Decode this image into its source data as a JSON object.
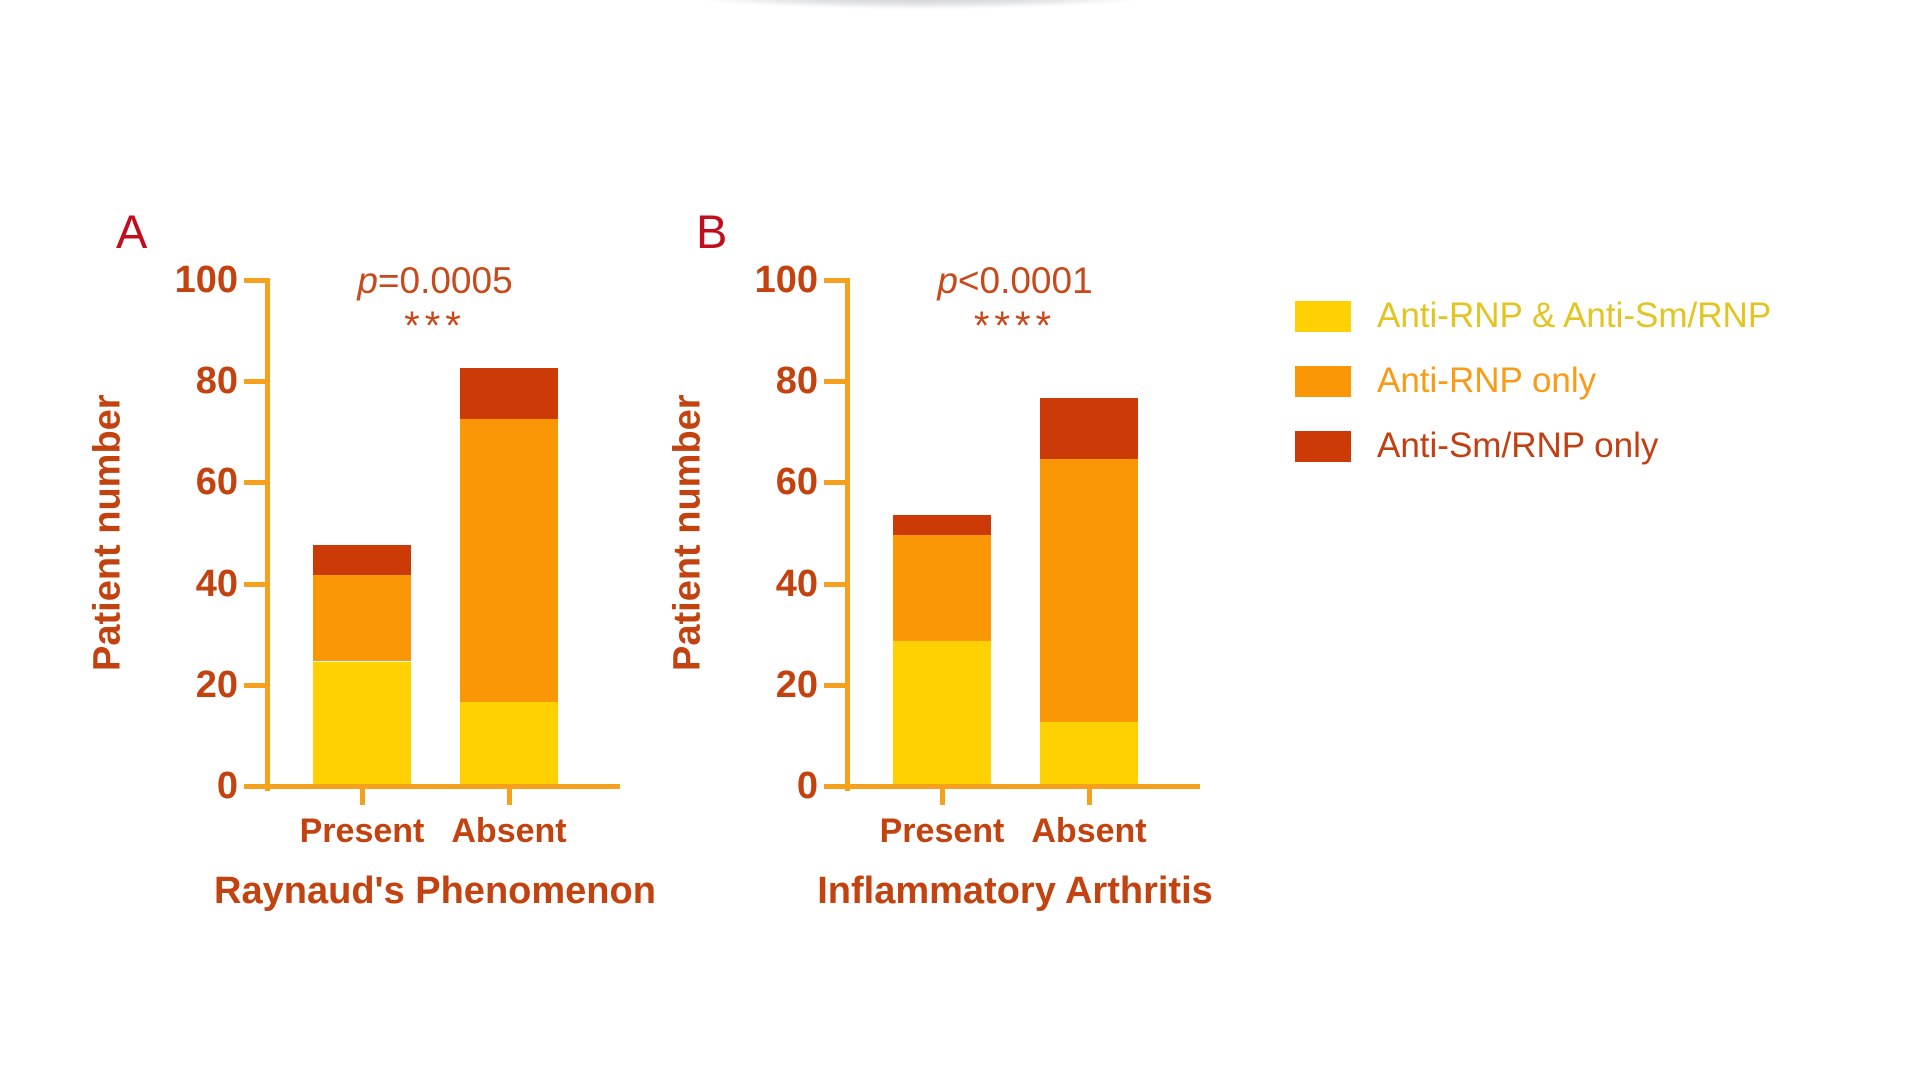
{
  "figure": {
    "background": "#ffffff",
    "ylabel": "Patient number"
  },
  "colors": {
    "axis": "#F6A11D",
    "tick_text": "#C24310",
    "category_text": "#C2430F",
    "title_text": "#C2430F",
    "ylabel_text": "#C2430F",
    "p_text": "#C8491B",
    "panel_letter": "#C30D1C"
  },
  "chart_data": [
    {
      "type": "bar",
      "subtype": "stacked-vertical",
      "panel_label": "A",
      "title": "Raynaud's Phenomenon",
      "xlabel": "",
      "ylabel": "Patient number",
      "ylim": [
        0,
        100
      ],
      "yticks": [
        0,
        20,
        40,
        60,
        80,
        100
      ],
      "grid": false,
      "categories": [
        "Present",
        "Absent"
      ],
      "series": [
        {
          "name": "Anti-RNP & Anti-Sm/RNP",
          "color": "#FFD100",
          "values": [
            25,
            17
          ]
        },
        {
          "name": "Anti-RNP only",
          "color": "#FA9706",
          "values": [
            17,
            56
          ]
        },
        {
          "name": "Anti-Sm/RNP only",
          "color": "#CC3A08",
          "values": [
            6,
            10
          ]
        }
      ],
      "stack_totals": [
        48,
        83
      ],
      "annotation": {
        "p_italic": "p",
        "p_rest": "=0.0005",
        "stars": "***"
      }
    },
    {
      "type": "bar",
      "subtype": "stacked-vertical",
      "panel_label": "B",
      "title": "Inflammatory Arthritis",
      "xlabel": "",
      "ylabel": "Patient number",
      "ylim": [
        0,
        100
      ],
      "yticks": [
        0,
        20,
        40,
        60,
        80,
        100
      ],
      "grid": false,
      "categories": [
        "Present",
        "Absent"
      ],
      "series": [
        {
          "name": "Anti-RNP & Anti-Sm/RNP",
          "color": "#FFD100",
          "values": [
            29,
            13
          ]
        },
        {
          "name": "Anti-RNP only",
          "color": "#FA9706",
          "values": [
            21,
            52
          ]
        },
        {
          "name": "Anti-Sm/RNP only",
          "color": "#CC3A08",
          "values": [
            4,
            12
          ]
        }
      ],
      "stack_totals": [
        54,
        77
      ],
      "annotation": {
        "p_italic": "p",
        "p_rest": "<0.0001",
        "stars": "****"
      }
    }
  ],
  "legend": {
    "position": "right",
    "items": [
      {
        "label": "Anti-RNP & Anti-Sm/RNP",
        "swatch_color": "#FFD104",
        "text_color": "#E2C522"
      },
      {
        "label": "Anti-RNP only",
        "swatch_color": "#FA9706",
        "text_color": "#F89B16"
      },
      {
        "label": "Anti-Sm/RNP only",
        "swatch_color": "#CC3A08",
        "text_color": "#C23F12"
      }
    ]
  }
}
